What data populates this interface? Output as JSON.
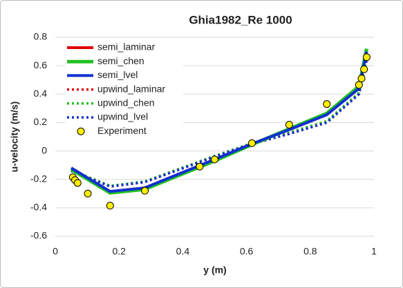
{
  "chart_data": {
    "type": "line",
    "title": "Ghia1982_Re 1000",
    "xlabel": "y (m)",
    "ylabel": "u-velocity (m/s)",
    "xlim": [
      0,
      1
    ],
    "xticks": [
      0,
      0.2,
      0.4,
      0.6,
      0.8,
      1
    ],
    "ylim": [
      -0.6,
      0.8
    ],
    "yticks": [
      -0.6,
      -0.4,
      -0.2,
      0,
      0.2,
      0.4,
      0.6,
      0.8
    ],
    "grid": true,
    "legend": "upper left",
    "series": [
      {
        "name": "semi_laminar",
        "color": "#e00000",
        "style": "solid",
        "x": [
          0.05,
          0.172,
          0.28,
          0.5,
          0.617,
          0.734,
          0.852,
          0.953,
          0.977
        ],
        "values": [
          -0.12,
          -0.285,
          -0.26,
          -0.06,
          0.05,
          0.15,
          0.255,
          0.44,
          0.7
        ]
      },
      {
        "name": "semi_chen",
        "color": "#22c022",
        "style": "solid",
        "x": [
          0.05,
          0.172,
          0.28,
          0.5,
          0.617,
          0.734,
          0.852,
          0.953,
          0.977
        ],
        "values": [
          -0.13,
          -0.295,
          -0.27,
          -0.07,
          0.045,
          0.155,
          0.265,
          0.455,
          0.72
        ]
      },
      {
        "name": "semi_lvel",
        "color": "#1030d0",
        "style": "solid",
        "x": [
          0.05,
          0.172,
          0.28,
          0.5,
          0.617,
          0.734,
          0.852,
          0.953,
          0.977
        ],
        "values": [
          -0.12,
          -0.285,
          -0.26,
          -0.06,
          0.05,
          0.15,
          0.255,
          0.44,
          0.7
        ]
      },
      {
        "name": "upwind_laminar",
        "color": "#e00000",
        "style": "dotted",
        "x": [
          0.05,
          0.172,
          0.28,
          0.5,
          0.617,
          0.734,
          0.852,
          0.953,
          0.977
        ],
        "values": [
          -0.14,
          -0.25,
          -0.22,
          -0.04,
          0.05,
          0.12,
          0.2,
          0.4,
          0.64
        ]
      },
      {
        "name": "upwind_chen",
        "color": "#22c022",
        "style": "dotted",
        "x": [
          0.05,
          0.172,
          0.28,
          0.5,
          0.617,
          0.734,
          0.852,
          0.953,
          0.977
        ],
        "values": [
          -0.135,
          -0.245,
          -0.215,
          -0.035,
          0.055,
          0.13,
          0.21,
          0.41,
          0.65
        ]
      },
      {
        "name": "upwind_lvel",
        "color": "#1030d0",
        "style": "dotted",
        "x": [
          0.05,
          0.172,
          0.28,
          0.5,
          0.617,
          0.734,
          0.852,
          0.953,
          0.977
        ],
        "values": [
          -0.14,
          -0.25,
          -0.22,
          -0.04,
          0.05,
          0.12,
          0.2,
          0.4,
          0.64
        ]
      },
      {
        "name": "Experiment",
        "color": "#ffee00",
        "style": "marker",
        "x": [
          0.055,
          0.062,
          0.07,
          0.102,
          0.172,
          0.281,
          0.453,
          0.5,
          0.617,
          0.734,
          0.852,
          0.953,
          0.961,
          0.969,
          0.977
        ],
        "values": [
          -0.185,
          -0.205,
          -0.225,
          -0.3,
          -0.385,
          -0.28,
          -0.11,
          -0.06,
          0.055,
          0.185,
          0.33,
          0.465,
          0.51,
          0.575,
          0.66
        ]
      }
    ]
  }
}
